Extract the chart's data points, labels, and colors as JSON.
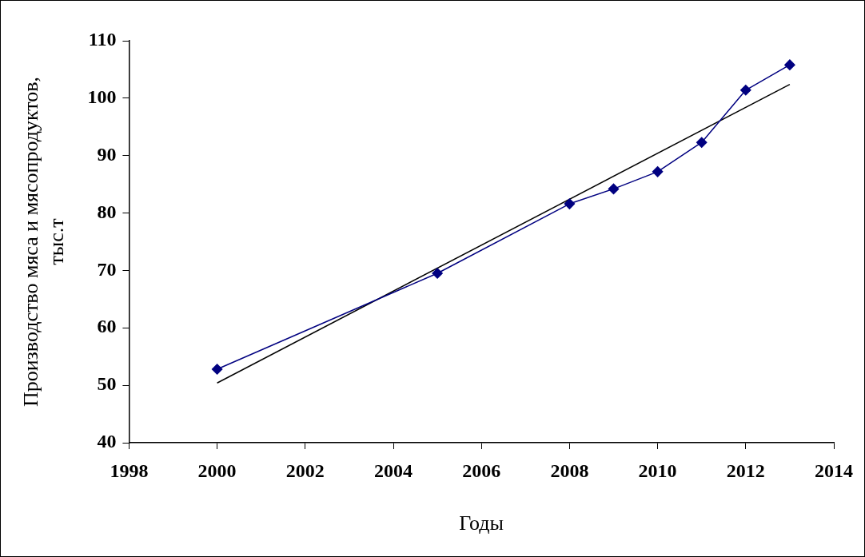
{
  "chart_data": {
    "type": "line",
    "xlabel": "Годы",
    "ylabel": "Производство мяса и мясопродуктов, тыс.т",
    "x": [
      2000,
      2005,
      2008,
      2009,
      2010,
      2011,
      2012,
      2013
    ],
    "series": [
      {
        "color": "#000080",
        "marker": "diamond",
        "values": [
          52.8,
          69.5,
          81.6,
          84.2,
          87.2,
          92.3,
          101.4,
          105.8
        ]
      },
      {
        "color": "#000000",
        "marker": "none",
        "x": [
          2000,
          2013
        ],
        "values": [
          50.4,
          102.4
        ]
      }
    ],
    "xlim": [
      1998,
      2014
    ],
    "xticks": [
      1998,
      2000,
      2002,
      2004,
      2006,
      2008,
      2010,
      2012,
      2014
    ],
    "ylim": [
      40,
      110
    ],
    "yticks": [
      40,
      50,
      60,
      70,
      80,
      90,
      100,
      110
    ],
    "grid": false,
    "legend": false
  }
}
